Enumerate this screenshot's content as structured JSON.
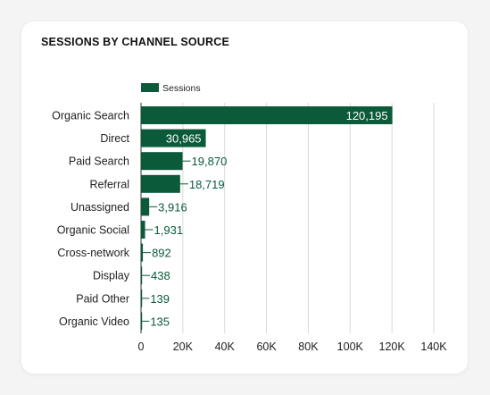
{
  "card": {
    "title": "SESSIONS BY CHANNEL SOURCE"
  },
  "chart_data": {
    "type": "bar",
    "orientation": "horizontal",
    "title": "SESSIONS BY CHANNEL SOURCE",
    "xlabel": "",
    "ylabel": "",
    "categories": [
      "Organic Search",
      "Direct",
      "Paid Search",
      "Referral",
      "Unassigned",
      "Organic Social",
      "Cross-network",
      "Display",
      "Paid Other",
      "Organic Video"
    ],
    "series": [
      {
        "name": "Sessions",
        "values": [
          120195,
          30965,
          19870,
          18719,
          3916,
          1931,
          892,
          438,
          139,
          135
        ],
        "labels": [
          "120,195",
          "30,965",
          "19,870",
          "18,719",
          "3,916",
          "1,931",
          "892",
          "438",
          "139",
          "135"
        ]
      }
    ],
    "xlim": [
      0,
      140000
    ],
    "xticks": [
      0,
      20000,
      40000,
      60000,
      80000,
      100000,
      120000,
      140000
    ],
    "xtick_labels": [
      "0",
      "20K",
      "40K",
      "60K",
      "80K",
      "100K",
      "120K",
      "140K"
    ],
    "grid": "vertical",
    "legend": "top-left",
    "colors": {
      "bar": "#0b5a3a",
      "label_inside": "#ffffff",
      "label_outside": "#0b5a3a",
      "grid": "#d9d9d9",
      "axis": "#333333"
    }
  }
}
